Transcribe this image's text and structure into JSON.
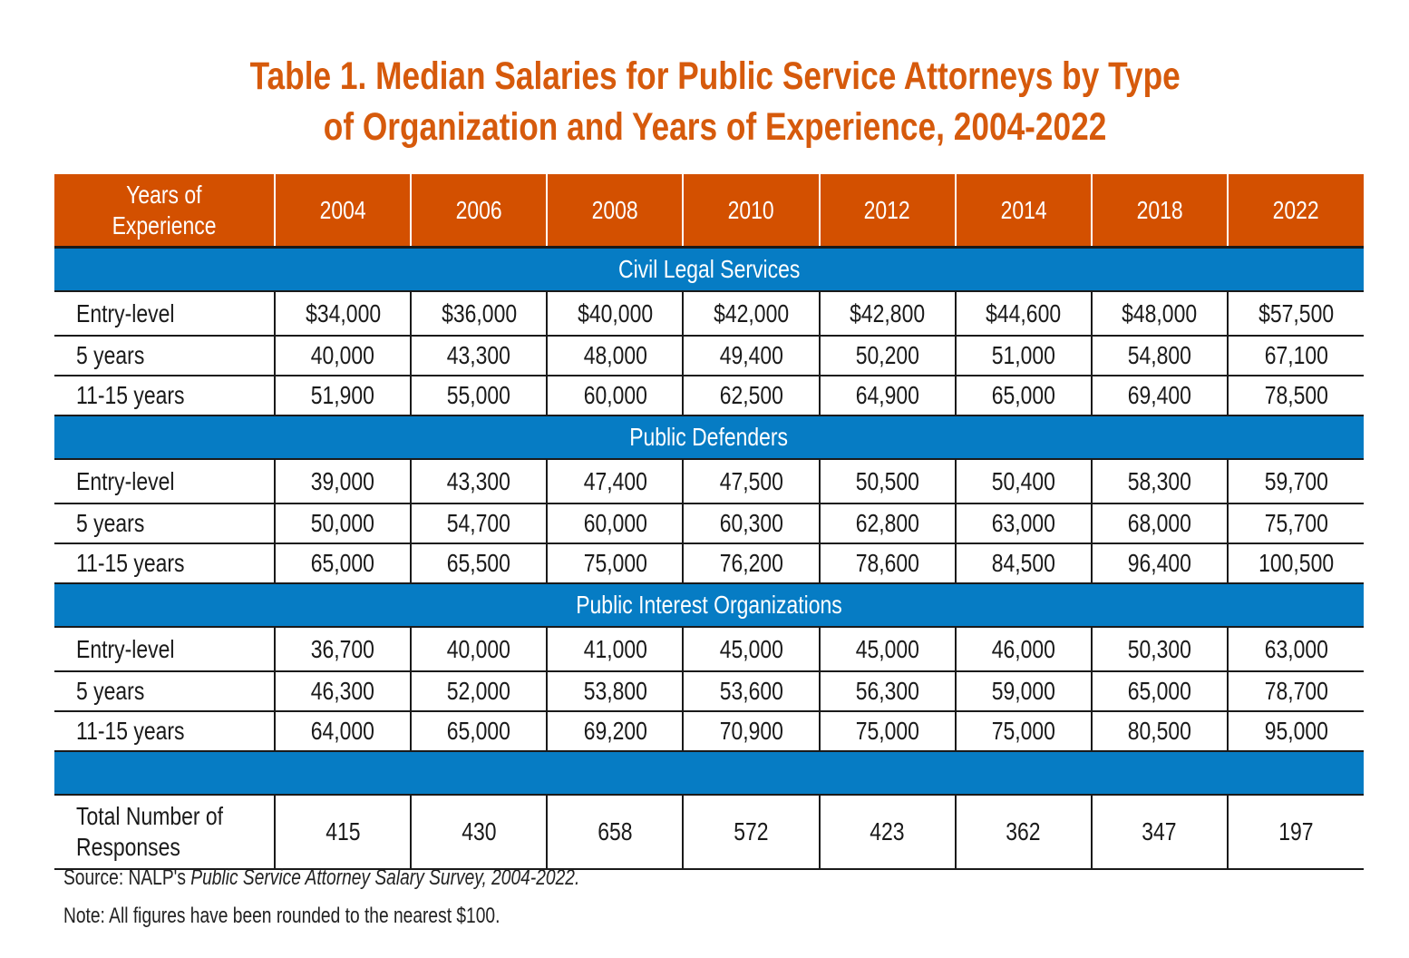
{
  "title": {
    "line1": "Table 1. Median Salaries for Public Service Attorneys by Type",
    "line2": "of Organization and Years of Experience, 2004-2022"
  },
  "colors": {
    "title": "#D65A0C",
    "header_bg": "#D35000",
    "section_bg": "#067CC4"
  },
  "header": {
    "first_line1": "Years of",
    "first_line2": "Experience",
    "years": [
      "2004",
      "2006",
      "2008",
      "2010",
      "2012",
      "2014",
      "2018",
      "2022"
    ]
  },
  "sections": [
    {
      "name": "Civil Legal Services",
      "rows": [
        {
          "label": "Entry-level",
          "values": [
            "$34,000",
            "$36,000",
            "$40,000",
            "$42,000",
            "$42,800",
            "$44,600",
            "$48,000",
            "$57,500"
          ]
        },
        {
          "label": "5 years",
          "values": [
            "40,000",
            "43,300",
            "48,000",
            "49,400",
            "50,200",
            "51,000",
            "54,800",
            "67,100"
          ]
        },
        {
          "label": "11-15 years",
          "values": [
            "51,900",
            "55,000",
            "60,000",
            "62,500",
            "64,900",
            "65,000",
            "69,400",
            "78,500"
          ]
        }
      ]
    },
    {
      "name": "Public Defenders",
      "rows": [
        {
          "label": "Entry-level",
          "values": [
            "39,000",
            "43,300",
            "47,400",
            "47,500",
            "50,500",
            "50,400",
            "58,300",
            "59,700"
          ]
        },
        {
          "label": "5 years",
          "values": [
            "50,000",
            "54,700",
            "60,000",
            "60,300",
            "62,800",
            "63,000",
            "68,000",
            "75,700"
          ]
        },
        {
          "label": "11-15 years",
          "values": [
            "65,000",
            "65,500",
            "75,000",
            "76,200",
            "78,600",
            "84,500",
            "96,400",
            "100,500"
          ]
        }
      ]
    },
    {
      "name": "Public Interest Organizations",
      "rows": [
        {
          "label": "Entry-level",
          "values": [
            "36,700",
            "40,000",
            "41,000",
            "45,000",
            "45,000",
            "46,000",
            "50,300",
            "63,000"
          ]
        },
        {
          "label": "5 years",
          "values": [
            "46,300",
            "52,000",
            "53,800",
            "53,600",
            "56,300",
            "59,000",
            "65,000",
            "78,700"
          ]
        },
        {
          "label": "11-15 years",
          "values": [
            "64,000",
            "65,000",
            "69,200",
            "70,900",
            "75,000",
            "75,000",
            "80,500",
            "95,000"
          ]
        }
      ]
    }
  ],
  "total": {
    "label_line1": "Total Number of",
    "label_line2": "Responses",
    "values": [
      "415",
      "430",
      "658",
      "572",
      "423",
      "362",
      "347",
      "197"
    ]
  },
  "footer": {
    "source_prefix": "Source: NALP's ",
    "source_title": "Public Service Attorney Salary Survey, 2004-2022.",
    "note": "Note: All figures have been rounded to the nearest $100."
  }
}
